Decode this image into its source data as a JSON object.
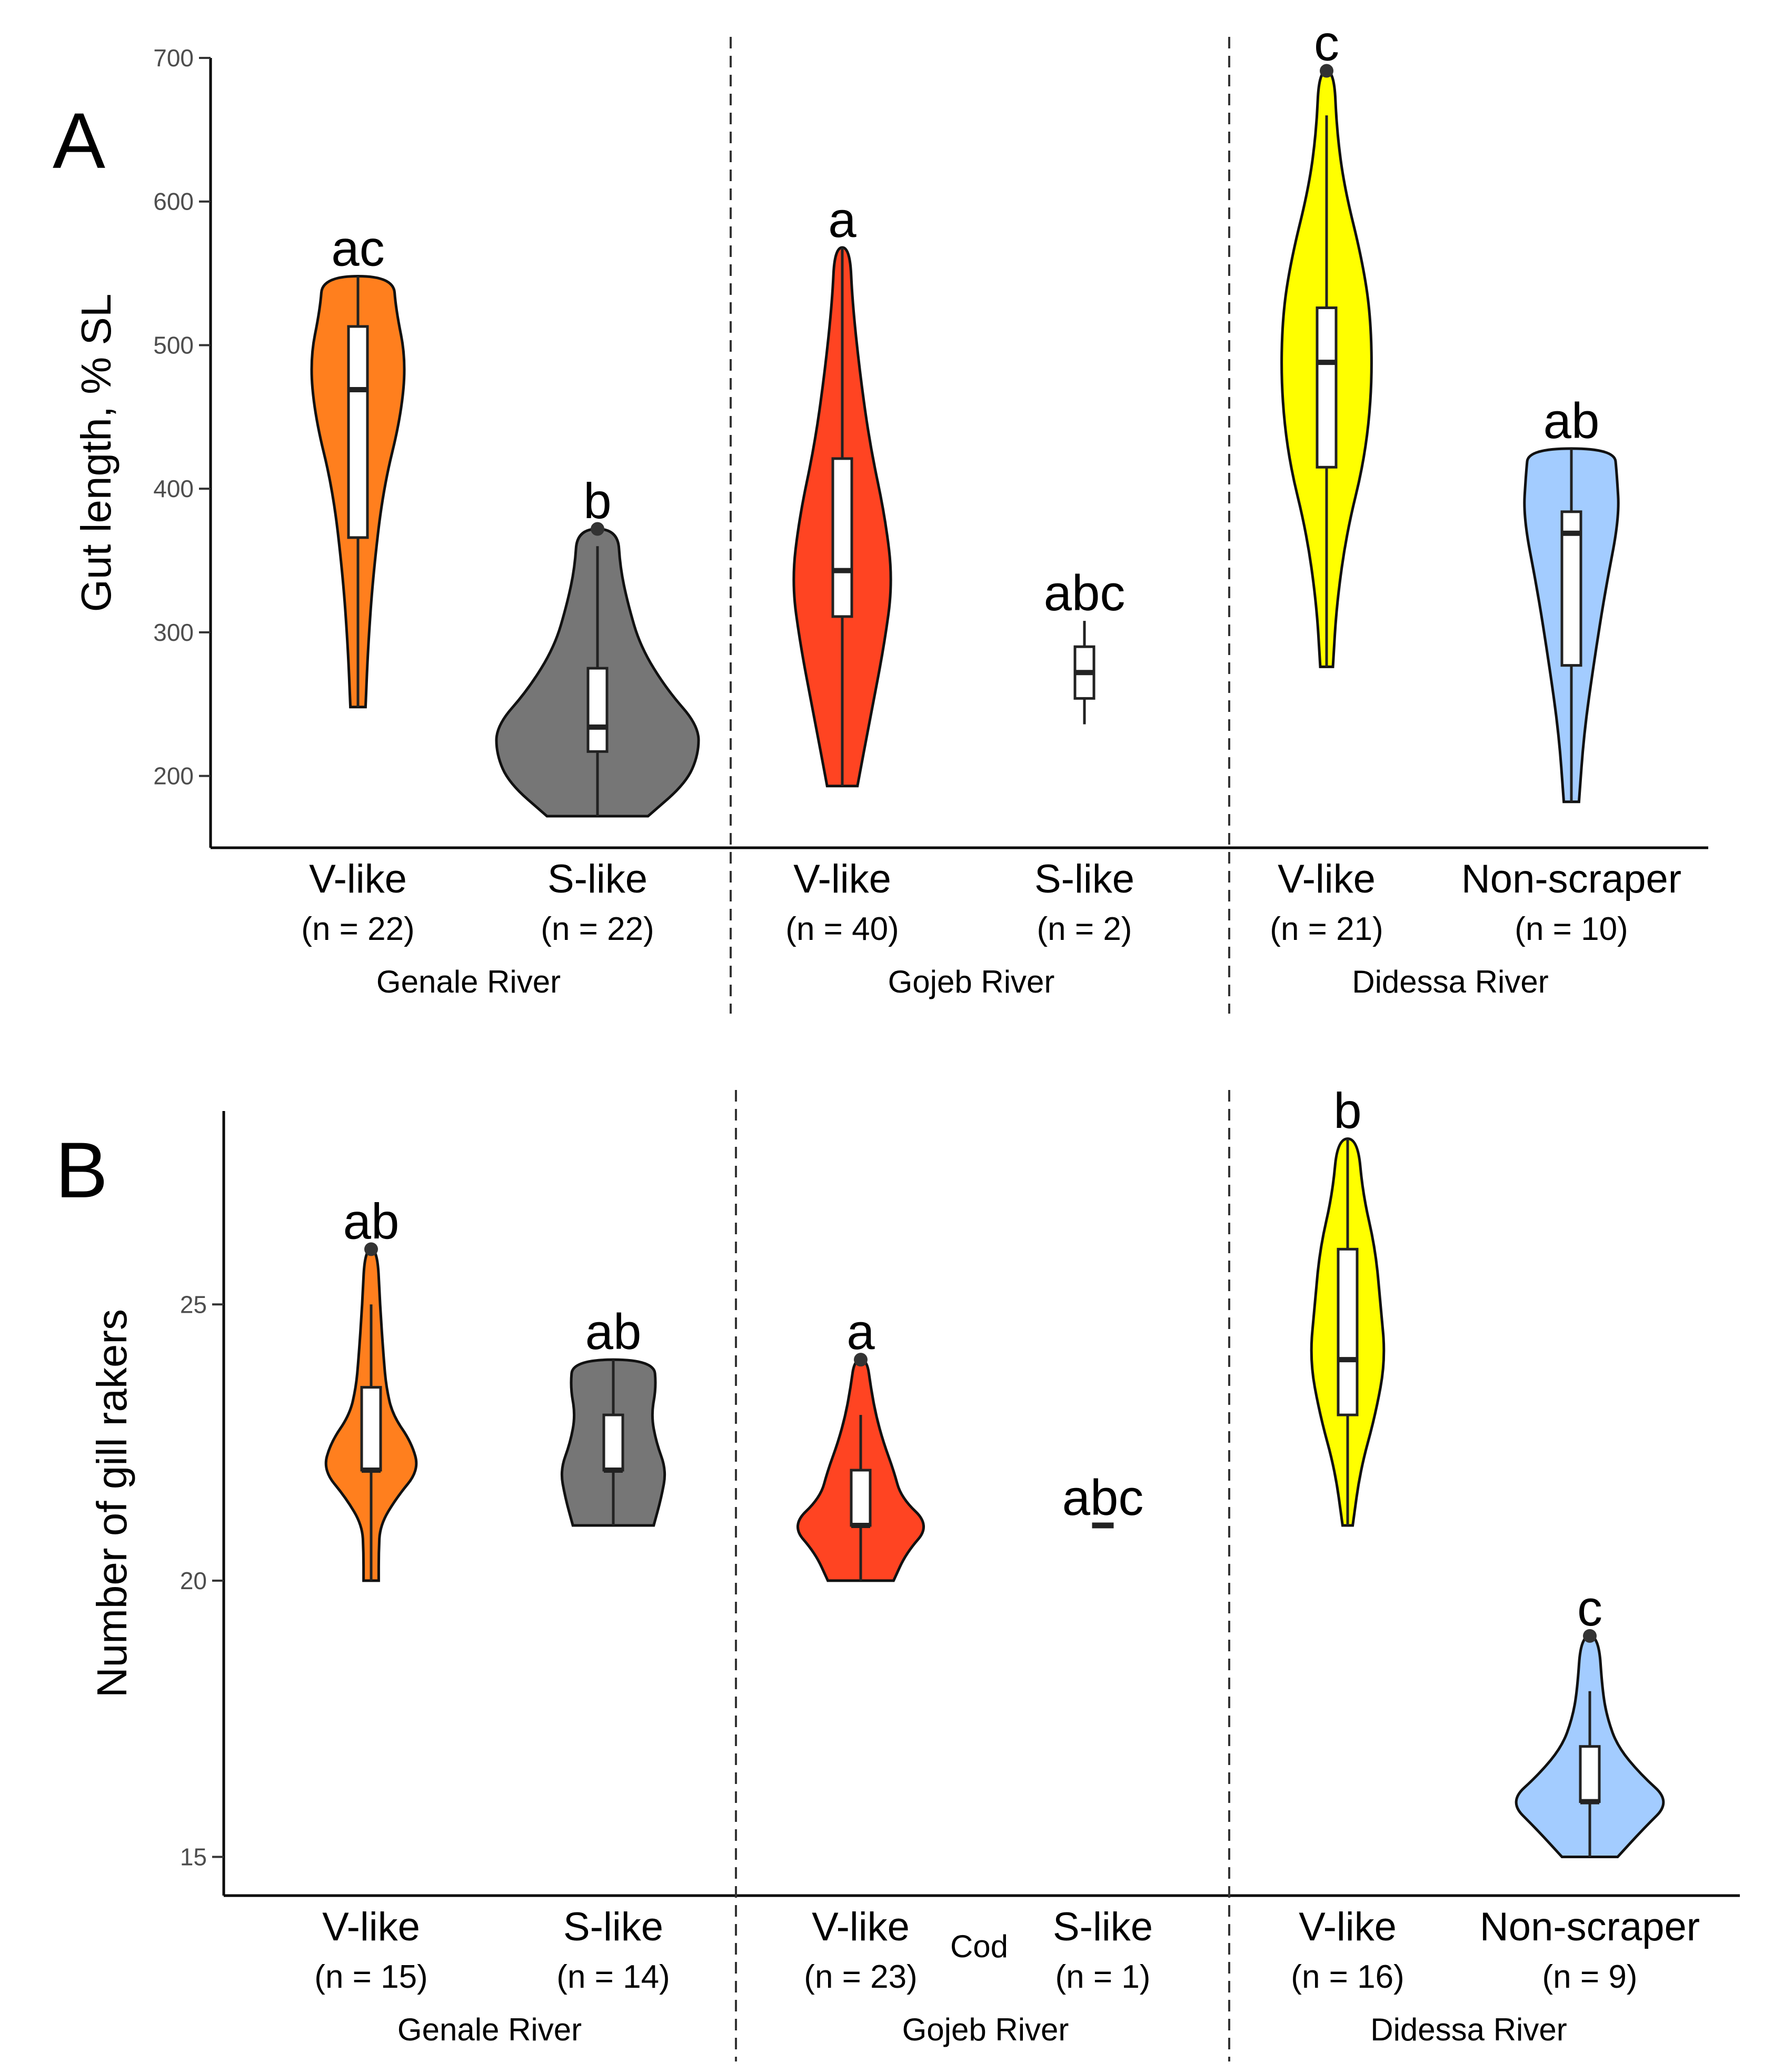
{
  "chart_data": [
    {
      "panel": "A",
      "type": "violin",
      "ylabel": "Gut length, % SL",
      "ylim": [
        150,
        700
      ],
      "yticks": [
        200,
        300,
        400,
        500,
        600,
        700
      ],
      "groups": [
        {
          "river": "Genale River",
          "categories": [
            {
              "name": "V-like",
              "n": "(n = 22)",
              "color": "#ff7f1e",
              "letter": "ac",
              "min": 248,
              "max": 548,
              "q1": 366,
              "median": 469,
              "q3": 513,
              "whisker_low": 248,
              "whisker_high": 548,
              "density": [
                [
                  248,
                  0.06
                ],
                [
                  290,
                  0.08
                ],
                [
                  340,
                  0.12
                ],
                [
                  400,
                  0.2
                ],
                [
                  450,
                  0.34
                ],
                [
                  490,
                  0.38
                ],
                [
                  525,
                  0.3
                ],
                [
                  548,
                  0.28
                ]
              ]
            },
            {
              "name": "S-like",
              "n": "(n = 22)",
              "color": "#767676",
              "letter": "b",
              "min": 172,
              "max": 372,
              "q1": 217,
              "median": 234,
              "q3": 275,
              "whisker_low": 172,
              "whisker_high": 360,
              "outliers": [
                372
              ],
              "density": [
                [
                  172,
                  0.4
                ],
                [
                  195,
                  0.7
                ],
                [
                  215,
                  0.8
                ],
                [
                  235,
                  0.8
                ],
                [
                  260,
                  0.55
                ],
                [
                  290,
                  0.34
                ],
                [
                  320,
                  0.24
                ],
                [
                  345,
                  0.18
                ],
                [
                  372,
                  0.16
                ]
              ]
            }
          ]
        },
        {
          "river": "Gojeb River",
          "categories": [
            {
              "name": "V-like",
              "n": "(n = 40)",
              "color": "#ff4422",
              "letter": "a",
              "min": 193,
              "max": 568,
              "q1": 311,
              "median": 343,
              "q3": 421,
              "whisker_low": 193,
              "whisker_high": 568,
              "density": [
                [
                  193,
                  0.12
                ],
                [
                  240,
                  0.22
                ],
                [
                  290,
                  0.33
                ],
                [
                  335,
                  0.4
                ],
                [
                  380,
                  0.34
                ],
                [
                  430,
                  0.22
                ],
                [
                  480,
                  0.14
                ],
                [
                  530,
                  0.08
                ],
                [
                  568,
                  0.06
                ]
              ]
            },
            {
              "name": "S-like",
              "n": "(n = 2)",
              "color": "#ffffff",
              "letter": "abc",
              "min": 236,
              "max": 308,
              "q1": 254,
              "median": 272,
              "q3": 290,
              "whisker_low": 236,
              "whisker_high": 308,
              "density": []
            }
          ]
        },
        {
          "river": "Didessa River",
          "categories": [
            {
              "name": "V-like",
              "n": "(n = 21)",
              "color": "#ffff00",
              "letter": "c",
              "min": 276,
              "max": 691,
              "q1": 415,
              "median": 488,
              "q3": 526,
              "whisker_low": 276,
              "whisker_high": 660,
              "outliers": [
                691
              ],
              "density": [
                [
                  276,
                  0.05
                ],
                [
                  320,
                  0.08
                ],
                [
                  370,
                  0.16
                ],
                [
                  420,
                  0.3
                ],
                [
                  470,
                  0.36
                ],
                [
                  520,
                  0.35
                ],
                [
                  560,
                  0.28
                ],
                [
                  610,
                  0.14
                ],
                [
                  650,
                  0.08
                ],
                [
                  691,
                  0.06
                ]
              ]
            },
            {
              "name": "Non-scraper",
              "n": "(n = 10)",
              "color": "#a3ccff",
              "letter": "ab",
              "min": 182,
              "max": 428,
              "q1": 277,
              "median": 369,
              "q3": 384,
              "whisker_low": 182,
              "whisker_high": 428,
              "density": [
                [
                  182,
                  0.06
                ],
                [
                  230,
                  0.1
                ],
                [
                  280,
                  0.18
                ],
                [
                  330,
                  0.27
                ],
                [
                  380,
                  0.38
                ],
                [
                  410,
                  0.36
                ],
                [
                  428,
                  0.34
                ]
              ]
            }
          ]
        }
      ]
    },
    {
      "panel": "B",
      "type": "violin",
      "ylabel": "Number of gill rakers",
      "ylim": [
        14.3,
        28.5
      ],
      "yticks": [
        15,
        20,
        25
      ],
      "groups": [
        {
          "river": "Genale River",
          "categories": [
            {
              "name": "V-like",
              "n": "(n = 15)",
              "color": "#ff7f1e",
              "letter": "ab",
              "min": 20,
              "max": 26,
              "q1": 22,
              "median": 22,
              "q3": 23.5,
              "whisker_low": 20,
              "whisker_high": 25,
              "outliers": [
                26
              ],
              "density": [
                [
                  20,
                  0.06
                ],
                [
                  20.5,
                  0.06
                ],
                [
                  21,
                  0.07
                ],
                [
                  21.5,
                  0.2
                ],
                [
                  22,
                  0.38
                ],
                [
                  22.5,
                  0.32
                ],
                [
                  23,
                  0.17
                ],
                [
                  23.5,
                  0.12
                ],
                [
                  24,
                  0.1
                ],
                [
                  25,
                  0.07
                ],
                [
                  26,
                  0.05
                ]
              ]
            },
            {
              "name": "S-like",
              "n": "(n = 14)",
              "color": "#767676",
              "letter": "ab",
              "min": 21,
              "max": 24,
              "q1": 22,
              "median": 22,
              "q3": 23,
              "whisker_low": 21,
              "whisker_high": 24,
              "density": [
                [
                  21,
                  0.32
                ],
                [
                  21.5,
                  0.38
                ],
                [
                  22,
                  0.42
                ],
                [
                  22.5,
                  0.34
                ],
                [
                  23,
                  0.3
                ],
                [
                  23.5,
                  0.34
                ],
                [
                  24,
                  0.32
                ]
              ]
            }
          ]
        },
        {
          "river": "Gojeb River",
          "categories": [
            {
              "name": "V-like",
              "n": "(n = 23)",
              "color": "#ff4422",
              "letter": "a",
              "min": 20,
              "max": 24,
              "q1": 21,
              "median": 21,
              "q3": 22,
              "whisker_low": 20,
              "whisker_high": 23,
              "outliers": [
                24
              ],
              "density": [
                [
                  20,
                  0.26
                ],
                [
                  20.5,
                  0.36
                ],
                [
                  21,
                  0.55
                ],
                [
                  21.5,
                  0.32
                ],
                [
                  22,
                  0.26
                ],
                [
                  22.5,
                  0.18
                ],
                [
                  23,
                  0.12
                ],
                [
                  23.5,
                  0.08
                ],
                [
                  24,
                  0.05
                ]
              ]
            },
            {
              "name": "S-like",
              "n": "(n = 1)",
              "color": "#ffffff",
              "letter": "abc",
              "min": 21,
              "max": 21,
              "q1": 21,
              "median": 21,
              "q3": 21,
              "whisker_low": 21,
              "whisker_high": 21,
              "density": []
            }
          ]
        },
        {
          "river": "Didessa River",
          "categories": [
            {
              "name": "V-like",
              "n": "(n = 16)",
              "color": "#ffff00",
              "letter": "b",
              "min": 21,
              "max": 28,
              "q1": 23,
              "median": 24,
              "q3": 26,
              "whisker_low": 21,
              "whisker_high": 28,
              "density": [
                [
                  21,
                  0.04
                ],
                [
                  22,
                  0.1
                ],
                [
                  23,
                  0.22
                ],
                [
                  24,
                  0.3
                ],
                [
                  25,
                  0.26
                ],
                [
                  26,
                  0.22
                ],
                [
                  27,
                  0.12
                ],
                [
                  28,
                  0.08
                ]
              ]
            },
            {
              "name": "Non-scraper",
              "n": "(n = 9)",
              "color": "#a3ccff",
              "letter": "c",
              "min": 15,
              "max": 19,
              "q1": 16,
              "median": 16,
              "q3": 17,
              "whisker_low": 15,
              "whisker_high": 18,
              "outliers": [
                19
              ],
              "density": [
                [
                  15,
                  0.22
                ],
                [
                  15.5,
                  0.42
                ],
                [
                  16,
                  0.64
                ],
                [
                  16.5,
                  0.4
                ],
                [
                  17,
                  0.22
                ],
                [
                  17.5,
                  0.14
                ],
                [
                  18,
                  0.1
                ],
                [
                  19,
                  0.07
                ]
              ]
            }
          ]
        }
      ]
    }
  ],
  "annotations": {
    "cod_label": "Cod"
  }
}
